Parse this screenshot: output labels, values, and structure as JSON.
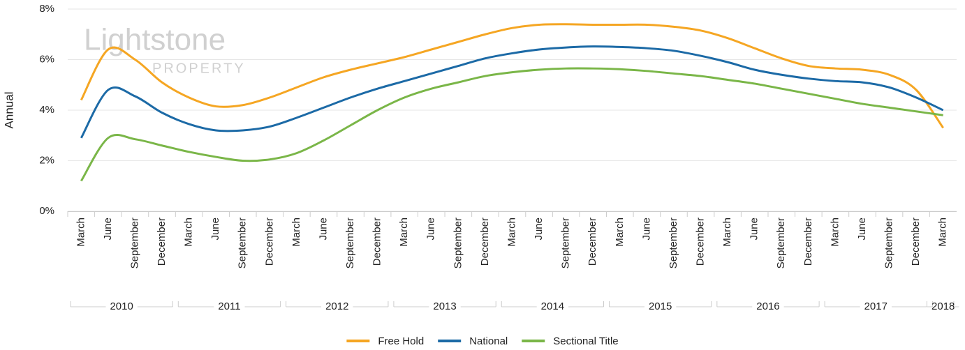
{
  "chart_data": {
    "type": "line",
    "y_label": "Annual",
    "watermark": [
      "Lightstone",
      "PROPERTY"
    ],
    "categories": [
      "March",
      "June",
      "September",
      "December",
      "March",
      "June",
      "September",
      "December",
      "March",
      "June",
      "September",
      "December",
      "March",
      "June",
      "September",
      "December",
      "March",
      "June",
      "September",
      "December",
      "March",
      "June",
      "September",
      "December",
      "March",
      "June",
      "September",
      "December",
      "March",
      "June",
      "September",
      "December",
      "March"
    ],
    "x_groups": [
      {
        "label": "2010",
        "size": 4
      },
      {
        "label": "2011",
        "size": 4
      },
      {
        "label": "2012",
        "size": 4
      },
      {
        "label": "2013",
        "size": 4
      },
      {
        "label": "2014",
        "size": 4
      },
      {
        "label": "2015",
        "size": 4
      },
      {
        "label": "2016",
        "size": 4
      },
      {
        "label": "2017",
        "size": 4
      },
      {
        "label": "2018",
        "size": 1
      }
    ],
    "series": [
      {
        "name": "Free Hold",
        "color": "#f5a623",
        "values": [
          4.4,
          6.4,
          6.0,
          5.1,
          4.5,
          4.15,
          4.2,
          4.5,
          4.9,
          5.3,
          5.6,
          5.85,
          6.1,
          6.4,
          6.7,
          7.0,
          7.25,
          7.38,
          7.4,
          7.38,
          7.38,
          7.38,
          7.3,
          7.15,
          6.85,
          6.45,
          6.05,
          5.75,
          5.65,
          5.6,
          5.4,
          4.8,
          3.3
        ]
      },
      {
        "name": "National",
        "color": "#1c6aa6",
        "values": [
          2.9,
          4.8,
          4.55,
          3.9,
          3.45,
          3.2,
          3.2,
          3.35,
          3.7,
          4.1,
          4.5,
          4.85,
          5.15,
          5.45,
          5.75,
          6.05,
          6.25,
          6.4,
          6.48,
          6.52,
          6.5,
          6.45,
          6.35,
          6.15,
          5.9,
          5.6,
          5.4,
          5.25,
          5.15,
          5.1,
          4.9,
          4.5,
          4.0
        ]
      },
      {
        "name": "Sectional Title",
        "color": "#7ab648",
        "values": [
          1.2,
          2.9,
          2.85,
          2.6,
          2.35,
          2.15,
          2.0,
          2.05,
          2.3,
          2.8,
          3.4,
          4.0,
          4.5,
          4.85,
          5.1,
          5.35,
          5.5,
          5.6,
          5.65,
          5.65,
          5.62,
          5.55,
          5.45,
          5.35,
          5.2,
          5.05,
          4.85,
          4.65,
          4.45,
          4.25,
          4.1,
          3.95,
          3.8
        ]
      }
    ],
    "ylim": [
      0,
      8
    ],
    "yticks": [
      {
        "value": 0,
        "label": "0%"
      },
      {
        "value": 2,
        "label": "2%"
      },
      {
        "value": 4,
        "label": "4%"
      },
      {
        "value": 6,
        "label": "6%"
      },
      {
        "value": 8,
        "label": "8%"
      }
    ],
    "grid": true,
    "legend": "bottom"
  }
}
